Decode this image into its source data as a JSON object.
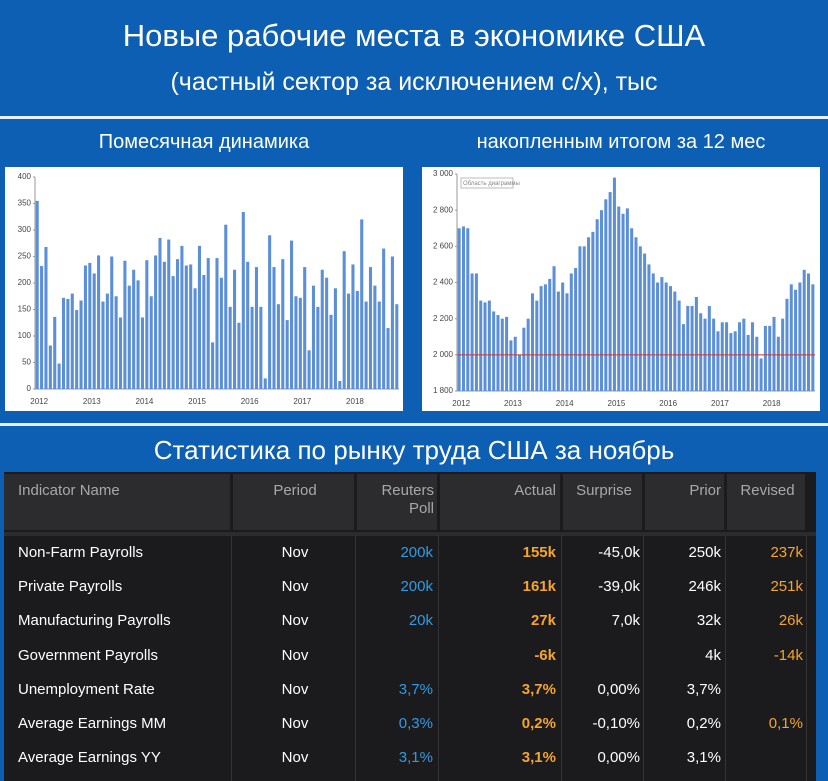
{
  "header": {
    "title": "Новые рабочие места в экономике США",
    "subtitle": "(частный сектор за исключением с/х), тыс"
  },
  "chart_data": [
    {
      "type": "bar",
      "title": "Помесячная динамика",
      "color": "#5b8fd8",
      "categories": [
        "2012",
        null,
        null,
        null,
        null,
        null,
        null,
        null,
        null,
        null,
        null,
        null,
        "2013",
        null,
        null,
        null,
        null,
        null,
        null,
        null,
        null,
        null,
        null,
        null,
        "2014",
        null,
        null,
        null,
        null,
        null,
        null,
        null,
        null,
        null,
        null,
        null,
        "2015",
        null,
        null,
        null,
        null,
        null,
        null,
        null,
        null,
        null,
        null,
        null,
        "2016",
        null,
        null,
        null,
        null,
        null,
        null,
        null,
        null,
        null,
        null,
        null,
        "2017",
        null,
        null,
        null,
        null,
        null,
        null,
        null,
        null,
        null,
        null,
        null,
        "2018",
        null,
        null,
        null,
        null,
        null,
        null,
        null,
        null,
        null,
        null
      ],
      "values": [
        355,
        232,
        268,
        82,
        136,
        48,
        172,
        170,
        180,
        149,
        167,
        233,
        238,
        218,
        252,
        165,
        180,
        250,
        175,
        135,
        242,
        195,
        225,
        205,
        135,
        243,
        175,
        252,
        285,
        240,
        282,
        213,
        245,
        270,
        233,
        235,
        190,
        270,
        215,
        247,
        88,
        247,
        210,
        310,
        155,
        225,
        125,
        334,
        240,
        155,
        230,
        155,
        20,
        290,
        230,
        160,
        245,
        130,
        280,
        175,
        172,
        230,
        73,
        195,
        155,
        225,
        210,
        140,
        190,
        15,
        260,
        180,
        235,
        185,
        320,
        165,
        230,
        195,
        165,
        265,
        115,
        250,
        160
      ],
      "ylim": [
        0,
        400
      ],
      "yticks": [
        0,
        50,
        100,
        150,
        200,
        250,
        300,
        350,
        400
      ],
      "grid": false
    },
    {
      "type": "bar",
      "title": "накопленным итогом за 12 мес",
      "color": "#5b8fd8",
      "tooltip": "Область диаграммы",
      "categories": [
        "2012",
        null,
        null,
        null,
        null,
        null,
        null,
        null,
        null,
        null,
        null,
        null,
        "2013",
        null,
        null,
        null,
        null,
        null,
        null,
        null,
        null,
        null,
        null,
        null,
        "2014",
        null,
        null,
        null,
        null,
        null,
        null,
        null,
        null,
        null,
        null,
        null,
        "2015",
        null,
        null,
        null,
        null,
        null,
        null,
        null,
        null,
        null,
        null,
        null,
        "2016",
        null,
        null,
        null,
        null,
        null,
        null,
        null,
        null,
        null,
        null,
        null,
        "2017",
        null,
        null,
        null,
        null,
        null,
        null,
        null,
        null,
        null,
        null,
        null,
        "2018",
        null,
        null,
        null,
        null,
        null,
        null,
        null,
        null,
        null,
        null
      ],
      "values": [
        2700,
        2710,
        2700,
        2450,
        2450,
        2300,
        2290,
        2300,
        2240,
        2220,
        2200,
        2210,
        2080,
        2100,
        2000,
        2150,
        2200,
        2340,
        2300,
        2380,
        2390,
        2420,
        2490,
        2350,
        2400,
        2340,
        2450,
        2480,
        2600,
        2600,
        2650,
        2680,
        2750,
        2800,
        2860,
        2900,
        2980,
        2820,
        2780,
        2810,
        2700,
        2650,
        2600,
        2560,
        2500,
        2450,
        2400,
        2430,
        2400,
        2380,
        2350,
        2300,
        2170,
        2270,
        2270,
        2320,
        2230,
        2200,
        2270,
        2200,
        2130,
        2180,
        2180,
        2120,
        2130,
        2180,
        2200,
        2110,
        2180,
        2100,
        1980,
        2160,
        2160,
        2210,
        2100,
        2200,
        2310,
        2390,
        2360,
        2400,
        2470,
        2450,
        2390
      ],
      "ylim": [
        1800,
        3000
      ],
      "yticks": [
        {
          "value": 1800,
          "label": "1 800"
        },
        {
          "value": 2000,
          "label": "2 000"
        },
        {
          "value": 2200,
          "label": "2 200"
        },
        {
          "value": 2400,
          "label": "2 400"
        },
        {
          "value": 2600,
          "label": "2 600"
        },
        {
          "value": 2800,
          "label": "2 800"
        },
        {
          "value": 3000,
          "label": "3 000"
        }
      ],
      "reference_line": {
        "value": 2000,
        "color": "#d03030"
      },
      "grid": false
    }
  ],
  "section_title": "Статистика по рынку труда США за ноябрь",
  "table": {
    "columns": [
      "Indicator Name",
      "Period",
      "Reuters Poll",
      "Actual",
      "Surprise",
      "Prior",
      "Revised"
    ],
    "rows": [
      [
        "Non-Farm Payrolls",
        "Nov",
        "200k",
        "155k",
        "-45,0k",
        "250k",
        "237k"
      ],
      [
        "Private Payrolls",
        "Nov",
        "200k",
        "161k",
        "-39,0k",
        "246k",
        "251k"
      ],
      [
        "Manufacturing Payrolls",
        "Nov",
        "20k",
        "27k",
        "7,0k",
        "32k",
        "26k"
      ],
      [
        "Government Payrolls",
        "Nov",
        null,
        "-6k",
        null,
        "4k",
        "-14k"
      ],
      [
        "Unemployment Rate",
        "Nov",
        "3,7%",
        "3,7%",
        "0,00%",
        "3,7%",
        null
      ],
      [
        "Average Earnings MM",
        "Nov",
        "0,3%",
        "0,2%",
        "-0,10%",
        "0,2%",
        "0,1%"
      ],
      [
        "Average Earnings YY",
        "Nov",
        "3,1%",
        "3,1%",
        "0,00%",
        "3,1%",
        null
      ]
    ]
  }
}
